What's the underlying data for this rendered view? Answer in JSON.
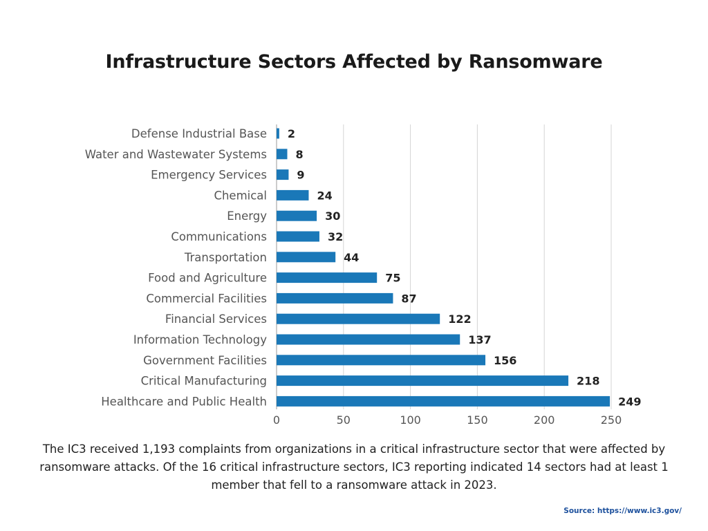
{
  "chart_data": {
    "type": "bar",
    "orientation": "horizontal",
    "title": "Infrastructure Sectors Affected by Ransomware",
    "categories": [
      "Defense Industrial Base",
      "Water and Wastewater Systems",
      "Emergency Services",
      "Chemical",
      "Energy",
      "Communications",
      "Transportation",
      "Food and Agriculture",
      "Commercial Facilities",
      "Financial Services",
      "Information Technology",
      "Government Facilities",
      "Critical Manufacturing",
      "Healthcare and Public Health"
    ],
    "values": [
      2,
      8,
      9,
      24,
      30,
      32,
      44,
      75,
      87,
      122,
      137,
      156,
      218,
      249
    ],
    "xlabel": "",
    "ylabel": "",
    "xlim": [
      0,
      250
    ],
    "xticks": [
      0,
      50,
      100,
      150,
      200,
      250
    ],
    "grid": "vertical",
    "bar_color": "#1a78b8",
    "grid_color": "#d4d4d4",
    "axis_color": "#9a9a9a"
  },
  "caption": "The IC3 received 1,193 complaints from organizations in a critical infrastructure sector that were affected by ransomware attacks. Of the 16 critical infrastructure sectors, IC3 reporting indicated 14 sectors had at least 1 member that fell to a ransomware attack in 2023.",
  "source": "Source: https://www.ic3.gov/"
}
